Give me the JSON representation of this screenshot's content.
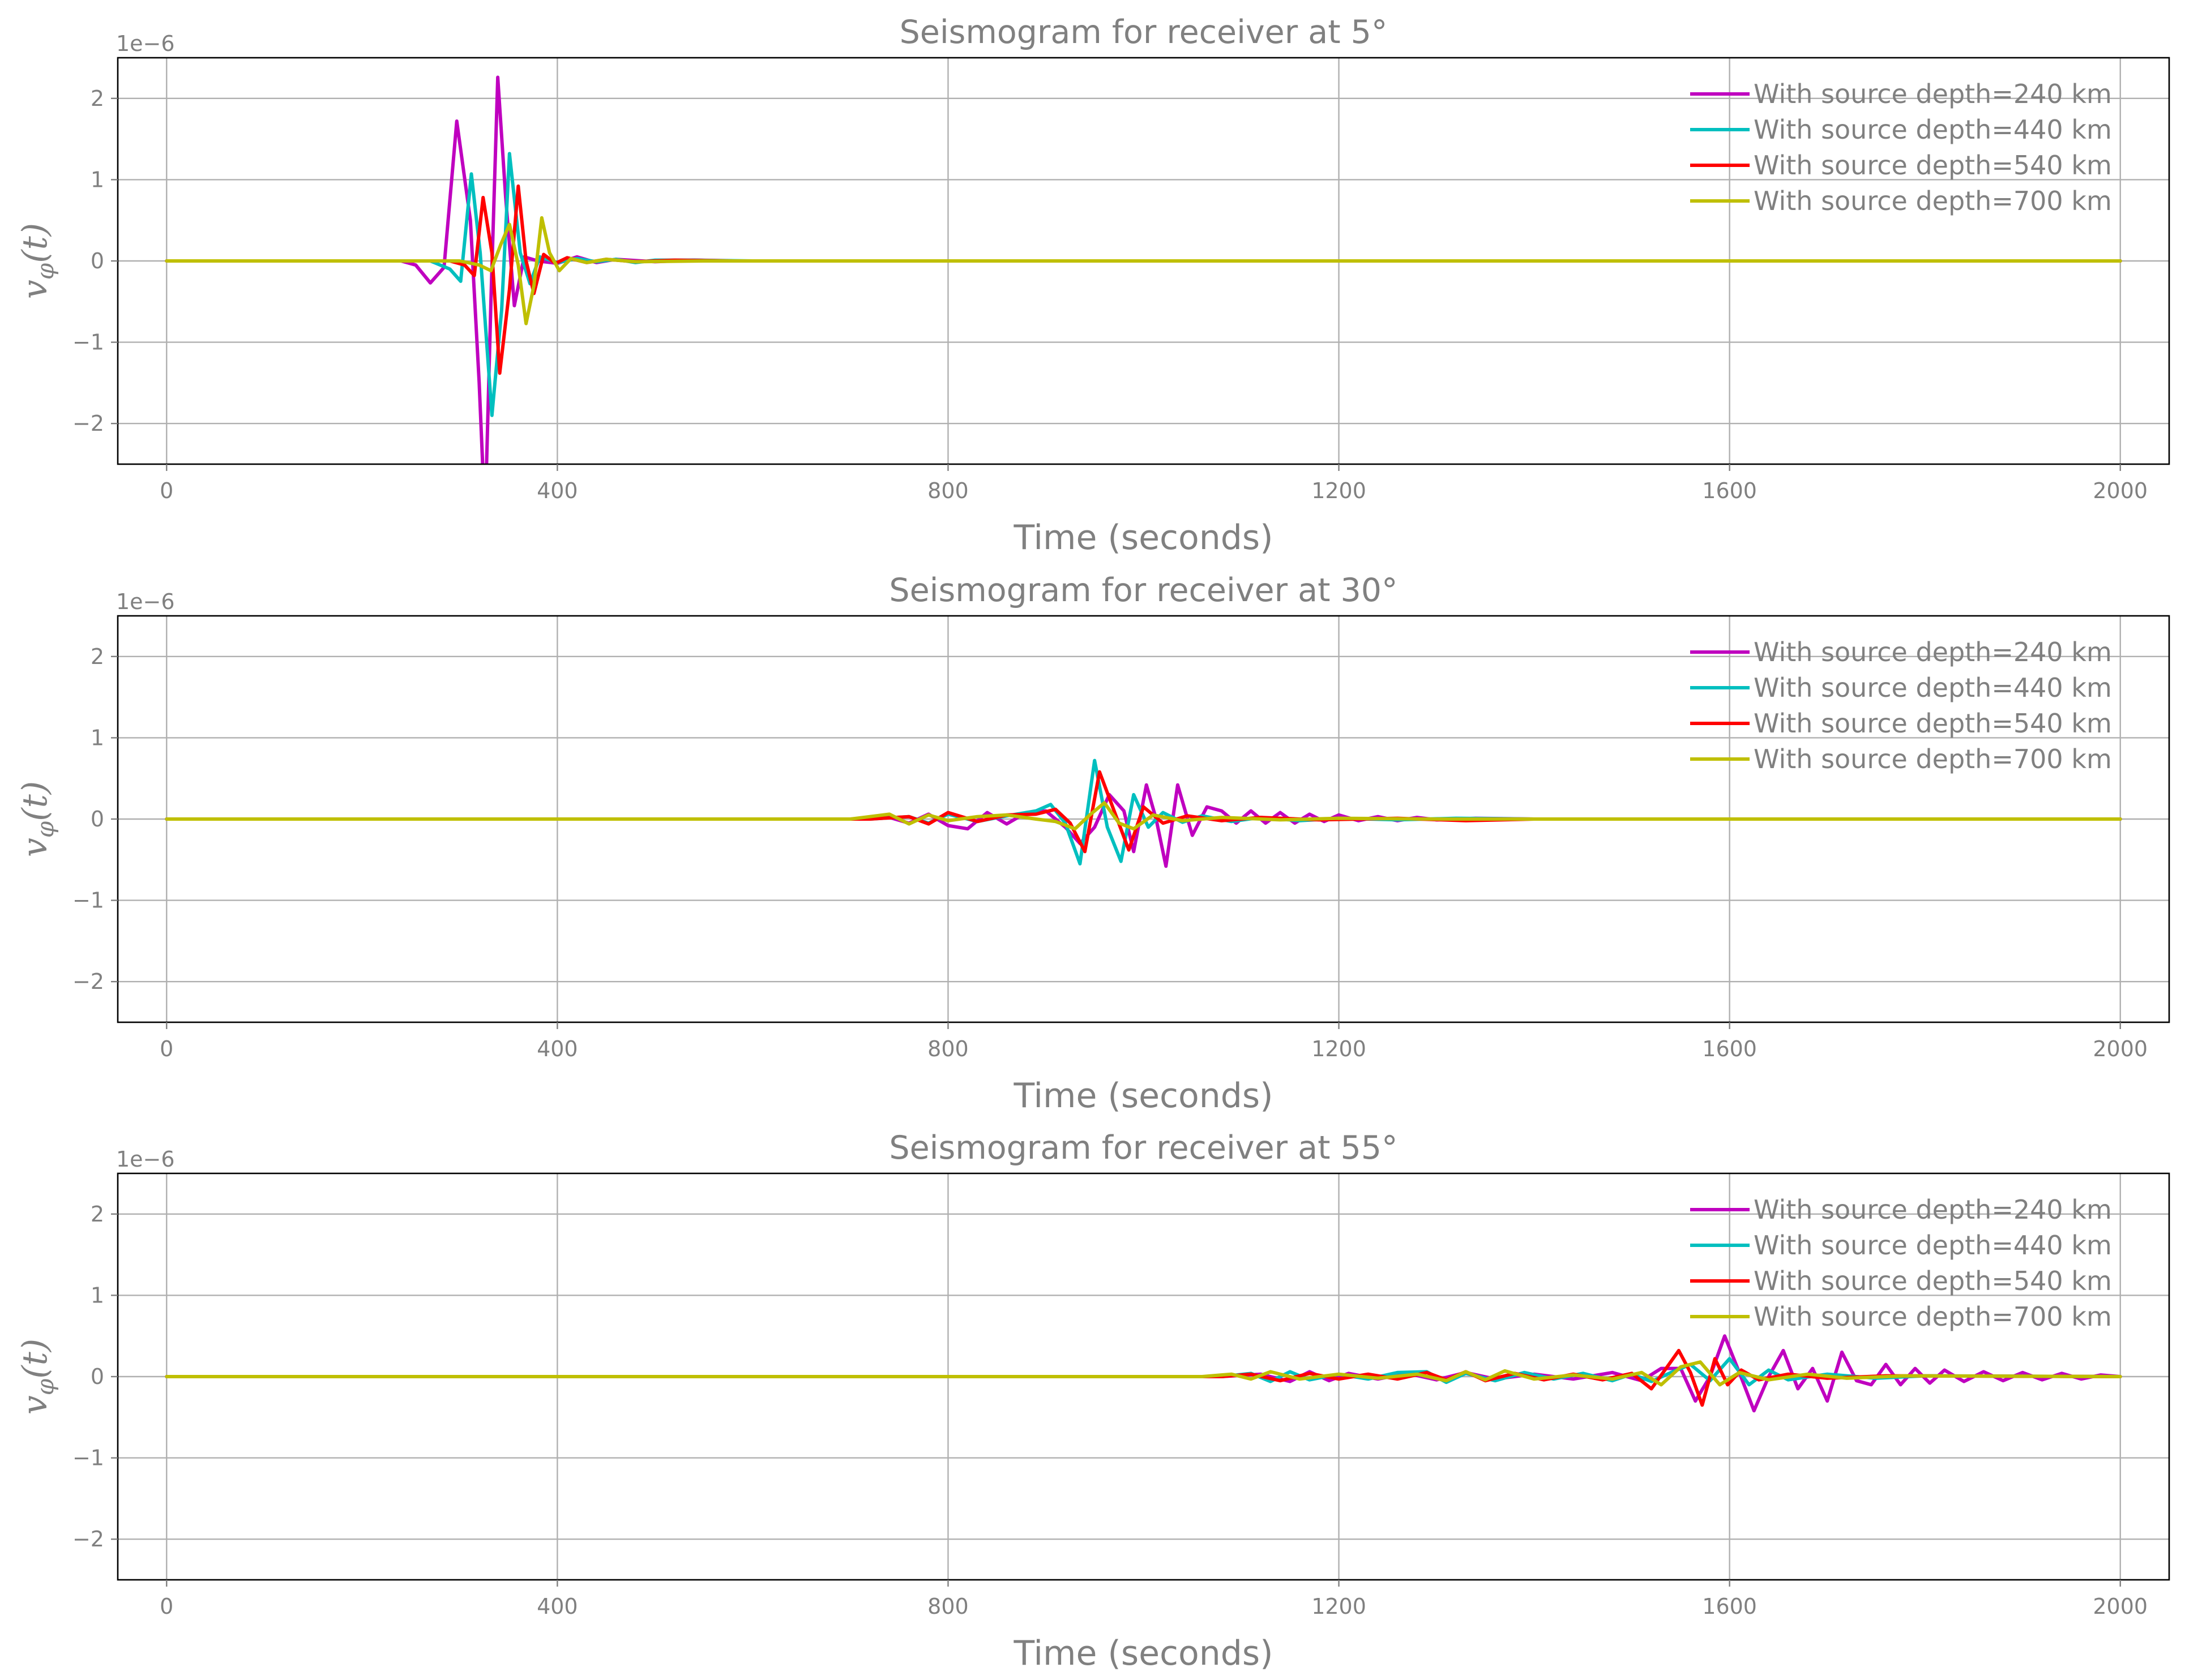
{
  "colors": {
    "series": [
      "#bf00bf",
      "#00bfbf",
      "#ff0000",
      "#bfbf00"
    ],
    "text": "#808080",
    "grid": "#b0b0b0"
  },
  "chart_data": [
    {
      "type": "line",
      "title": "Seismogram for receiver at 5°",
      "xlabel": "Time (seconds)",
      "ylabel": "v_φ(t)",
      "y_offset_label": "1e−6",
      "xlim": [
        -50,
        2050
      ],
      "ylim": [
        -2.5,
        2.5
      ],
      "xticks": [
        0,
        400,
        800,
        1200,
        1600,
        2000
      ],
      "yticks": [
        -2,
        -1,
        0,
        1,
        2
      ],
      "ytick_labels": [
        "−2",
        "−1",
        "0",
        "1",
        "2"
      ],
      "grid": true,
      "legend_position": "top-right",
      "series": [
        {
          "name": "With source depth=240 km",
          "x": [
            0,
            240,
            255,
            270,
            284,
            297,
            311,
            320,
            326,
            332,
            339,
            347,
            356,
            366,
            380,
            400,
            420,
            440,
            460,
            500,
            540,
            580,
            640,
            1000,
            1100,
            1200,
            2000
          ],
          "y": [
            0,
            0,
            -0.05,
            -0.27,
            -0.08,
            1.72,
            0.5,
            -1.5,
            -3.2,
            -0.5,
            2.26,
            0.8,
            -0.55,
            0.05,
            0.0,
            -0.03,
            0.05,
            -0.02,
            0.02,
            -0.01,
            0.01,
            0,
            0,
            0,
            0,
            0,
            0
          ]
        },
        {
          "name": "With source depth=440 km",
          "x": [
            0,
            270,
            290,
            301,
            312,
            321,
            333,
            343,
            351,
            362,
            372,
            382,
            400,
            420,
            440,
            460,
            480,
            500,
            540,
            600,
            700,
            2000
          ],
          "y": [
            0,
            0,
            -0.1,
            -0.25,
            1.07,
            0.1,
            -1.9,
            -0.6,
            1.32,
            0.1,
            -0.28,
            0.05,
            -0.02,
            0.03,
            -0.01,
            0.02,
            -0.02,
            0.01,
            0.01,
            0,
            0,
            0
          ]
        },
        {
          "name": "With source depth=540 km",
          "x": [
            0,
            290,
            305,
            315,
            324,
            333,
            341,
            351,
            360,
            368,
            376,
            386,
            398,
            410,
            430,
            450,
            480,
            520,
            580,
            700,
            2000
          ],
          "y": [
            0,
            0,
            -0.05,
            -0.18,
            0.78,
            0.1,
            -1.38,
            -0.35,
            0.92,
            0.0,
            -0.4,
            0.08,
            -0.03,
            0.04,
            -0.02,
            0.02,
            -0.01,
            0.01,
            0,
            0,
            0
          ]
        },
        {
          "name": "With source depth=700 km",
          "x": [
            0,
            300,
            320,
            332,
            342,
            351,
            360,
            368,
            376,
            384,
            392,
            402,
            414,
            430,
            450,
            480,
            550,
            700,
            2000
          ],
          "y": [
            0,
            0,
            -0.05,
            -0.12,
            0.2,
            0.45,
            -0.05,
            -0.77,
            -0.3,
            0.53,
            0.1,
            -0.12,
            0.03,
            -0.02,
            0.02,
            -0.01,
            0,
            0,
            0
          ]
        }
      ]
    },
    {
      "type": "line",
      "title": "Seismogram for receiver at 30°",
      "xlabel": "Time (seconds)",
      "ylabel": "v_φ(t)",
      "y_offset_label": "1e−6",
      "xlim": [
        -50,
        2050
      ],
      "ylim": [
        -2.5,
        2.5
      ],
      "xticks": [
        0,
        400,
        800,
        1200,
        1600,
        2000
      ],
      "yticks": [
        -2,
        -1,
        0,
        1,
        2
      ],
      "ytick_labels": [
        "−2",
        "−1",
        "0",
        "1",
        "2"
      ],
      "grid": true,
      "legend_position": "top-right",
      "series": [
        {
          "name": "With source depth=240 km",
          "x": [
            0,
            700,
            740,
            760,
            780,
            800,
            820,
            840,
            860,
            880,
            900,
            920,
            935,
            950,
            965,
            980,
            990,
            1003,
            1013,
            1023,
            1035,
            1050,
            1065,
            1080,
            1095,
            1110,
            1125,
            1140,
            1155,
            1170,
            1185,
            1200,
            1220,
            1240,
            1260,
            1280,
            1300,
            1340,
            1400,
            2000
          ],
          "y": [
            0,
            0,
            0.02,
            -0.05,
            0.06,
            -0.08,
            -0.12,
            0.08,
            -0.06,
            0.08,
            0.1,
            -0.1,
            -0.3,
            -0.1,
            0.3,
            0.1,
            -0.4,
            0.42,
            0.0,
            -0.58,
            0.42,
            -0.2,
            0.15,
            0.1,
            -0.05,
            0.1,
            -0.05,
            0.08,
            -0.05,
            0.06,
            -0.03,
            0.05,
            -0.02,
            0.03,
            -0.02,
            0.02,
            -0.01,
            0.01,
            0,
            0
          ]
        },
        {
          "name": "With source depth=440 km",
          "x": [
            0,
            720,
            760,
            780,
            800,
            830,
            860,
            890,
            905,
            920,
            935,
            950,
            963,
            977,
            990,
            1005,
            1020,
            1040,
            1060,
            1090,
            1120,
            1160,
            1200,
            1260,
            1320,
            1400,
            2000
          ],
          "y": [
            0,
            0,
            0.03,
            -0.05,
            0.06,
            -0.03,
            0.04,
            0.1,
            0.18,
            -0.05,
            -0.55,
            0.72,
            -0.1,
            -0.52,
            0.3,
            -0.1,
            0.08,
            -0.04,
            0.04,
            -0.03,
            0.02,
            -0.02,
            0.01,
            -0.01,
            0.01,
            0,
            0
          ]
        },
        {
          "name": "With source depth=540 km",
          "x": [
            0,
            720,
            760,
            780,
            800,
            830,
            860,
            890,
            910,
            925,
            940,
            955,
            970,
            985,
            1000,
            1020,
            1045,
            1080,
            1120,
            1180,
            1260,
            1330,
            1400,
            2000
          ],
          "y": [
            0,
            0,
            0.03,
            -0.06,
            0.08,
            -0.03,
            0.05,
            0.06,
            0.12,
            -0.05,
            -0.4,
            0.58,
            0.1,
            -0.38,
            0.15,
            -0.05,
            0.04,
            -0.02,
            0.02,
            -0.01,
            0.01,
            -0.02,
            0,
            0
          ]
        },
        {
          "name": "With source depth=700 km",
          "x": [
            0,
            700,
            740,
            760,
            780,
            800,
            830,
            860,
            890,
            910,
            930,
            945,
            960,
            975,
            990,
            1010,
            1040,
            1080,
            1140,
            1200,
            1300,
            1400,
            2000
          ],
          "y": [
            0,
            0,
            0.06,
            -0.06,
            0.05,
            -0.02,
            0.03,
            0.05,
            0.0,
            -0.03,
            -0.12,
            0.05,
            0.2,
            -0.05,
            -0.12,
            0.05,
            -0.02,
            0.02,
            -0.01,
            0.01,
            0,
            0,
            0
          ]
        }
      ]
    },
    {
      "type": "line",
      "title": "Seismogram for receiver at 55°",
      "xlabel": "Time (seconds)",
      "ylabel": "v_φ(t)",
      "y_offset_label": "1e−6",
      "xlim": [
        -50,
        2050
      ],
      "ylim": [
        -2.5,
        2.5
      ],
      "xticks": [
        0,
        400,
        800,
        1200,
        1600,
        2000
      ],
      "yticks": [
        -2,
        -1,
        0,
        1,
        2
      ],
      "ytick_labels": [
        "−2",
        "−1",
        "0",
        "1",
        "2"
      ],
      "grid": true,
      "legend_position": "top-right",
      "series": [
        {
          "name": "With source depth=240 km",
          "x": [
            0,
            1080,
            1120,
            1150,
            1170,
            1190,
            1210,
            1240,
            1270,
            1300,
            1330,
            1360,
            1400,
            1440,
            1480,
            1510,
            1530,
            1550,
            1565,
            1580,
            1595,
            1610,
            1625,
            1640,
            1655,
            1670,
            1685,
            1700,
            1715,
            1730,
            1745,
            1760,
            1775,
            1790,
            1805,
            1820,
            1840,
            1860,
            1880,
            1900,
            1920,
            1940,
            1960,
            1980,
            2000
          ],
          "y": [
            0,
            0,
            0.03,
            -0.06,
            0.06,
            -0.05,
            0.04,
            -0.03,
            0.04,
            -0.04,
            0.05,
            -0.03,
            0.03,
            -0.03,
            0.05,
            -0.05,
            0.1,
            0.1,
            -0.3,
            0.0,
            0.5,
            0.05,
            -0.42,
            0.0,
            0.32,
            -0.15,
            0.1,
            -0.3,
            0.3,
            -0.05,
            -0.1,
            0.15,
            -0.1,
            0.1,
            -0.08,
            0.08,
            -0.06,
            0.06,
            -0.05,
            0.05,
            -0.04,
            0.04,
            -0.03,
            0.02,
            0
          ]
        },
        {
          "name": "With source depth=440 km",
          "x": [
            0,
            1080,
            1110,
            1130,
            1150,
            1170,
            1200,
            1230,
            1260,
            1290,
            1310,
            1330,
            1360,
            1390,
            1420,
            1450,
            1480,
            1500,
            1520,
            1540,
            1560,
            1580,
            1600,
            1620,
            1640,
            1660,
            1700,
            1750,
            1800,
            2000
          ],
          "y": [
            0,
            0,
            0.04,
            -0.06,
            0.06,
            -0.04,
            0.03,
            -0.03,
            0.05,
            0.06,
            -0.07,
            0.04,
            -0.05,
            0.05,
            -0.03,
            0.04,
            -0.05,
            0.03,
            -0.06,
            0.05,
            0.15,
            -0.05,
            0.22,
            -0.1,
            0.08,
            -0.04,
            0.03,
            -0.02,
            0.01,
            0
          ]
        },
        {
          "name": "With source depth=540 km",
          "x": [
            0,
            1080,
            1110,
            1140,
            1170,
            1200,
            1230,
            1260,
            1290,
            1310,
            1330,
            1350,
            1380,
            1410,
            1440,
            1470,
            1500,
            1520,
            1535,
            1548,
            1560,
            1572,
            1585,
            1598,
            1612,
            1630,
            1660,
            1700,
            1760,
            2000
          ],
          "y": [
            0,
            0,
            0.03,
            -0.05,
            0.04,
            -0.03,
            0.03,
            -0.03,
            0.05,
            -0.04,
            0.06,
            -0.05,
            0.04,
            -0.04,
            0.03,
            -0.04,
            0.04,
            -0.15,
            0.1,
            0.32,
            0.05,
            -0.35,
            0.22,
            -0.1,
            0.08,
            -0.04,
            0.03,
            -0.02,
            0.01,
            0
          ]
        },
        {
          "name": "With source depth=700 km",
          "x": [
            0,
            1060,
            1090,
            1110,
            1130,
            1160,
            1200,
            1240,
            1280,
            1310,
            1330,
            1350,
            1370,
            1400,
            1440,
            1480,
            1510,
            1530,
            1550,
            1570,
            1590,
            1610,
            1640,
            1680,
            1720,
            1780,
            2000
          ],
          "y": [
            0,
            0,
            0.03,
            -0.03,
            0.06,
            -0.03,
            0.03,
            -0.02,
            0.03,
            -0.05,
            0.06,
            -0.04,
            0.07,
            -0.03,
            0.02,
            -0.03,
            0.05,
            -0.1,
            0.12,
            0.18,
            -0.1,
            0.05,
            -0.04,
            0.03,
            -0.02,
            0.01,
            0
          ]
        }
      ]
    }
  ]
}
